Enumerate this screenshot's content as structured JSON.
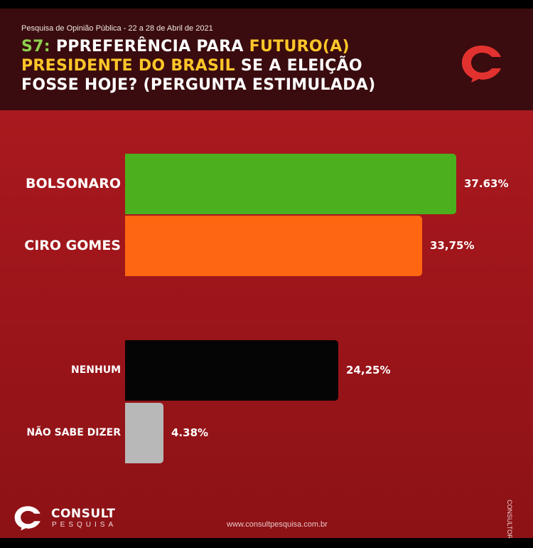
{
  "header": {
    "subtitle": "Pesquisa de Opinião Pública - 22 a 28 de Abril de 2021",
    "title_prefix": "S7:",
    "title_part1": " PPREFERÊNCIA PARA ",
    "title_highlight1": "FUTURO(A)",
    "title_highlight2": "PRESIDENTE DO BRASIL",
    "title_part2": " SE A ELEIÇÃO FOSSE HOJE? (PERGUNTA ESTIMULADA)"
  },
  "colors": {
    "header_bg": "#3a0c0f",
    "background": "#a0161b",
    "title_green": "#8fd14f",
    "title_yellow": "#ffc629",
    "bolsonaro": "#4caf1e",
    "ciro": "#ff6611",
    "nenhum": "#050505",
    "nao_sabe": "#b8b8b8"
  },
  "chart_data": {
    "type": "bar",
    "orientation": "horizontal",
    "categories": [
      "BOLSONARO",
      "CIRO GOMES",
      "NENHUM",
      "NÃO SABE DIZER"
    ],
    "values": [
      37.63,
      33.75,
      24.25,
      4.38
    ],
    "value_labels": [
      "37.63%",
      "33,75%",
      "24,25%",
      "4.38%"
    ],
    "bar_colors": [
      "#4caf1e",
      "#ff6611",
      "#050505",
      "#b8b8b8"
    ],
    "xlim": [
      0,
      40
    ],
    "unit": "%",
    "grid": false,
    "legend": "none"
  },
  "footer": {
    "brand": "CONSULT",
    "brand_sub": "PESQUISA",
    "url": "www.consultpesquisa.com.br",
    "side_signature": "CONSULTORIA"
  }
}
